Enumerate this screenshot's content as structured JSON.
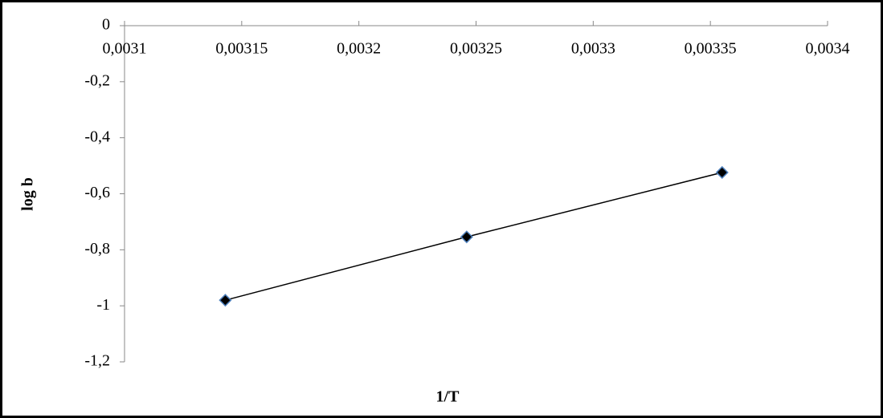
{
  "chart_data": {
    "type": "scatter",
    "x_label": "1/T",
    "y_label": "log b",
    "xlim": [
      0.0031,
      0.0034
    ],
    "xticks": [
      {
        "value": 0.0031,
        "label": "0,0031"
      },
      {
        "value": 0.00315,
        "label": "0,00315"
      },
      {
        "value": 0.0032,
        "label": "0,0032"
      },
      {
        "value": 0.00325,
        "label": "0,00325"
      },
      {
        "value": 0.0033,
        "label": "0,0033"
      },
      {
        "value": 0.00335,
        "label": "0,00335"
      },
      {
        "value": 0.0034,
        "label": "0,0034"
      }
    ],
    "ylim": [
      -1.2,
      0
    ],
    "yticks": [
      0,
      {
        "value": -0.2,
        "label": "-0,2"
      },
      {
        "value": -0.4,
        "label": "-0,4"
      },
      {
        "value": -0.6,
        "label": "-0,6"
      },
      {
        "value": -0.8,
        "label": "-0,8"
      },
      -1,
      {
        "value": -1.2,
        "label": "-1,2"
      }
    ],
    "series": [
      {
        "x": [
          0.003143,
          0.003246,
          0.003355
        ],
        "values": [
          -0.98,
          -0.754,
          -0.524
        ],
        "color": "#000000",
        "marker_edge": "#4f81bd"
      }
    ]
  }
}
